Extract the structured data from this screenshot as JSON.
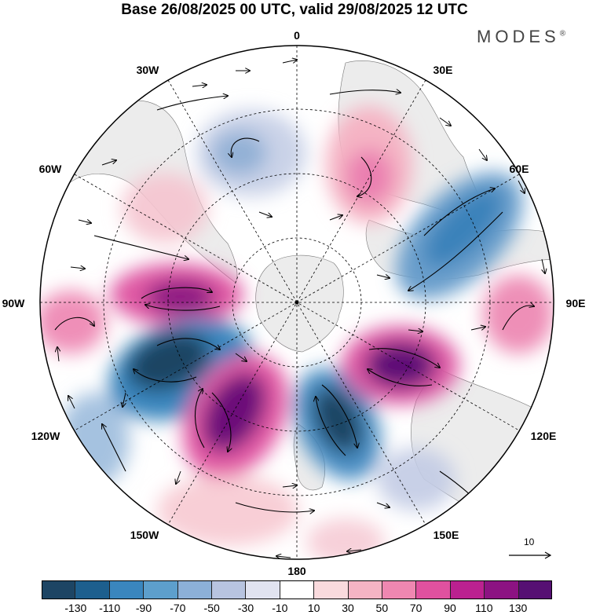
{
  "title": "Base 26/08/2025 00 UTC, valid 29/08/2025 12 UTC",
  "brand": "MODES",
  "brand_mark": "®",
  "longitude_labels": {
    "n0": "0",
    "n30e": "30E",
    "n60e": "60E",
    "n90e": "90E",
    "n120e": "120E",
    "n150e": "150E",
    "n180": "180",
    "n150w": "150W",
    "n120w": "120W",
    "n90w": "90W",
    "n60w": "60W",
    "n30w": "30W"
  },
  "vector_reference": "10",
  "colorbar": {
    "colors": [
      "#1d4564",
      "#1d5f8e",
      "#3a86be",
      "#5d9fcc",
      "#8cb0d8",
      "#b8c4e0",
      "#e1e3f0",
      "#ffffff",
      "#f9dadd",
      "#f5b4c4",
      "#ef87b1",
      "#e0519f",
      "#bb2190",
      "#8c1382",
      "#561073"
    ],
    "ticks": [
      "-130",
      "-110",
      "-90",
      "-70",
      "-50",
      "-30",
      "-10",
      "10",
      "30",
      "50",
      "70",
      "90",
      "110",
      "130"
    ]
  }
}
